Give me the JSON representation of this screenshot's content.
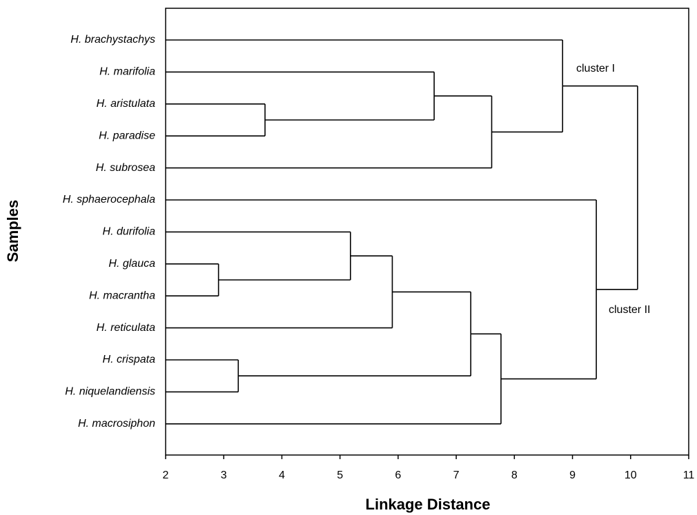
{
  "chart_data": {
    "type": "dendrogram",
    "x_label": "Linkage Distance",
    "y_label": "Samples",
    "xlim": [
      2,
      11
    ],
    "xticks": [
      2,
      3,
      4,
      5,
      6,
      7,
      8,
      9,
      10,
      11
    ],
    "color": "#000000",
    "annotations": [
      "cluster I",
      "cluster II"
    ],
    "tree": {
      "height": 10.12,
      "children": [
        {
          "height": 8.83,
          "children": [
            "H. brachystachys",
            {
              "height": 7.61,
              "children": [
                {
                  "height": 6.62,
                  "children": [
                    "H. marifolia",
                    {
                      "height": 3.71,
                      "children": [
                        "H. aristulata",
                        "H. paradise"
                      ]
                    }
                  ]
                },
                "H. subrosea"
              ]
            }
          ]
        },
        {
          "height": 9.41,
          "children": [
            "H. sphaerocephala",
            {
              "height": 7.77,
              "children": [
                {
                  "height": 7.25,
                  "children": [
                    {
                      "height": 5.9,
                      "children": [
                        {
                          "height": 5.18,
                          "children": [
                            "H. durifolia",
                            {
                              "height": 2.91,
                              "children": [
                                "H. glauca",
                                "H. macrantha"
                              ]
                            }
                          ]
                        },
                        "H. reticulata"
                      ]
                    },
                    {
                      "height": 3.25,
                      "children": [
                        "H. crispata",
                        "H. niquelandiensis"
                      ]
                    }
                  ]
                },
                "H. macrosiphon"
              ]
            }
          ]
        }
      ]
    }
  }
}
